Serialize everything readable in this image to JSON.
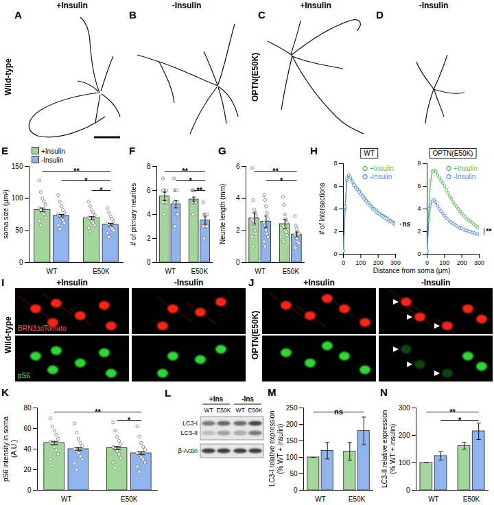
{
  "tracings": [
    {
      "genotype": "Wild-type",
      "panels": [
        {
          "label": "A",
          "condition": "+Insulin"
        },
        {
          "label": "B",
          "condition": "-Insulin"
        }
      ]
    },
    {
      "genotype": "OPTN(E50K)",
      "panels": [
        {
          "label": "C",
          "condition": "+Insulin"
        },
        {
          "label": "D",
          "condition": "-Insulin"
        }
      ]
    }
  ],
  "micrographs": [
    {
      "label": "I",
      "genotype": "Wild-type",
      "conditions": [
        "+Insulin",
        "-Insulin"
      ],
      "channels": [
        "BRN3:tdTomato",
        "pS6"
      ]
    },
    {
      "label": "J",
      "genotype": "OPTN(E50K)",
      "conditions": [
        "+Insulin",
        "-Insulin"
      ]
    }
  ],
  "western_blot": {
    "label": "L",
    "conditions": [
      {
        "name": "+Ins",
        "lanes": [
          "WT",
          "E50K"
        ]
      },
      {
        "name": "-Ins",
        "lanes": [
          "WT",
          "E50K"
        ]
      }
    ],
    "bands": [
      "LC3-I",
      "LC3-II",
      "β-Actin"
    ]
  },
  "chart_data": [
    {
      "panel": "E",
      "type": "bar",
      "ylabel": "soma size (μm²)",
      "categories": [
        "WT",
        "E50K"
      ],
      "series": [
        {
          "name": "+Insulin",
          "color": "#a3d69b",
          "values": [
            82,
            69
          ],
          "errors": [
            3,
            2.5
          ],
          "points": [
            [
              128,
              110,
              100,
              95,
              90,
              85,
              82,
              78,
              75,
              70,
              65,
              58
            ],
            [
              95,
              88,
              82,
              78,
              74,
              70,
              68,
              65,
              62,
              58,
              54,
              48
            ]
          ]
        },
        {
          "name": "-Insulin",
          "color": "#8fb4ee",
          "values": [
            73,
            59
          ],
          "errors": [
            2,
            2
          ],
          "points": [
            [
              105,
              95,
              88,
              82,
              78,
              75,
              72,
              70,
              66,
              62,
              58,
              52
            ],
            [
              85,
              78,
              72,
              68,
              64,
              61,
              58,
              56,
              53,
              50,
              46,
              40
            ]
          ]
        }
      ],
      "ylim": [
        0,
        150
      ],
      "yticks": [
        0,
        50,
        100,
        150
      ],
      "legend": "top-left",
      "significance": [
        {
          "from": [
            "WT",
            "+Insulin"
          ],
          "to": [
            "E50K",
            "-Insulin"
          ],
          "label": "**"
        },
        {
          "from": [
            "WT",
            "-Insulin"
          ],
          "to": [
            "E50K",
            "-Insulin"
          ],
          "label": "*"
        },
        {
          "from": [
            "E50K",
            "+Insulin"
          ],
          "to": [
            "E50K",
            "-Insulin"
          ],
          "label": "*"
        }
      ]
    },
    {
      "panel": "F",
      "type": "bar",
      "ylabel": "# of primary neurites",
      "categories": [
        "WT",
        "E50K"
      ],
      "series": [
        {
          "name": "+Insulin",
          "color": "#a3d69b",
          "values": [
            5.5,
            5.25
          ],
          "errors": [
            0.35,
            0.2
          ],
          "points": [
            [
              7,
              6,
              6,
              6,
              6,
              6,
              5,
              5,
              5,
              5,
              5,
              4
            ],
            [
              6,
              6,
              6,
              6,
              5,
              5,
              5,
              5,
              5,
              5,
              5,
              4
            ]
          ]
        },
        {
          "name": "-Insulin",
          "color": "#8fb4ee",
          "values": [
            4.85,
            3.5
          ],
          "errors": [
            0.3,
            0.3
          ],
          "points": [
            [
              7,
              6,
              6,
              6,
              5,
              5,
              5,
              4,
              4,
              4,
              3,
              3
            ],
            [
              5,
              4,
              4,
              4,
              4,
              3,
              3,
              3,
              3,
              3,
              3,
              2
            ]
          ]
        }
      ],
      "ylim": [
        0,
        8
      ],
      "yticks": [
        0,
        2,
        4,
        6,
        8
      ],
      "significance": [
        {
          "from": [
            "WT",
            "+Insulin"
          ],
          "to": [
            "E50K",
            "-Insulin"
          ],
          "label": "**"
        },
        {
          "from": [
            "WT",
            "-Insulin"
          ],
          "to": [
            "E50K",
            "-Insulin"
          ],
          "label": "*"
        },
        {
          "from": [
            "E50K",
            "+Insulin"
          ],
          "to": [
            "E50K",
            "-Insulin"
          ],
          "label": "**"
        }
      ]
    },
    {
      "panel": "G",
      "type": "bar",
      "ylabel": "Neurite length (mm)",
      "categories": [
        "WT",
        "E50K"
      ],
      "series": [
        {
          "name": "+Insulin",
          "color": "#a3d69b",
          "values": [
            2.75,
            2.4
          ],
          "errors": [
            0.35,
            0.3
          ],
          "points": [
            [
              5.9,
              3.9,
              3.3,
              3.1,
              2.9,
              2.7,
              2.6,
              2.4,
              2.0,
              1.8,
              1.6,
              1.0
            ],
            [
              4.1,
              3.6,
              3.0,
              2.7,
              2.5,
              2.3,
              2.2,
              2.0,
              1.9,
              1.7,
              1.4,
              1.3
            ]
          ]
        },
        {
          "name": "-Insulin",
          "color": "#8fb4ee",
          "values": [
            2.55,
            1.75
          ],
          "errors": [
            0.35,
            0.15
          ],
          "points": [
            [
              4.2,
              3.9,
              3.5,
              3.1,
              2.7,
              2.5,
              2.3,
              2.0,
              1.8,
              1.6,
              1.3,
              1.0
            ],
            [
              2.9,
              2.3,
              2.1,
              1.9,
              1.8,
              1.7,
              1.6,
              1.5,
              1.3,
              1.2,
              1.0,
              0.9
            ]
          ]
        }
      ],
      "ylim": [
        0,
        6
      ],
      "yticks": [
        0,
        2,
        4,
        6
      ],
      "significance": [
        {
          "from": [
            "WT",
            "+Insulin"
          ],
          "to": [
            "E50K",
            "-Insulin"
          ],
          "label": "**"
        },
        {
          "from": [
            "WT",
            "-Insulin"
          ],
          "to": [
            "E50K",
            "-Insulin"
          ],
          "label": "*"
        }
      ]
    },
    {
      "panel": "H",
      "type": "line",
      "marker": "circle",
      "legend": "top-right",
      "xlabel": "Distance from soma (μm)",
      "ylabel": "# of intersections",
      "xlim": [
        0,
        300
      ],
      "xticks": [
        0,
        100,
        200,
        300
      ],
      "ylim": [
        0,
        8
      ],
      "yticks": [
        0,
        2,
        4,
        6,
        8
      ],
      "x": [
        0,
        10,
        20,
        30,
        40,
        50,
        60,
        70,
        80,
        90,
        100,
        110,
        120,
        130,
        140,
        150,
        160,
        170,
        180,
        190,
        200,
        210,
        220,
        230,
        240,
        250,
        260,
        270,
        280,
        290,
        300
      ],
      "subplots": [
        {
          "title": "WT",
          "annotation": "ns",
          "series": [
            {
              "name": "+Insulin",
              "color": "#5fb85a",
              "values": [
                0.3,
                4,
                6.5,
                7,
                6.8,
                6.5,
                6.2,
                6,
                5.8,
                5.6,
                5.4,
                5.2,
                5,
                4.8,
                4.6,
                4.4,
                4.3,
                4.1,
                4,
                3.9,
                3.7,
                3.6,
                3.5,
                3.4,
                3.3,
                3.2,
                3.1,
                3,
                2.9,
                2.8,
                2.7
              ]
            },
            {
              "name": "-Insulin",
              "color": "#5b8fe0",
              "values": [
                0.3,
                4.2,
                6.7,
                7,
                6.8,
                6.4,
                6.1,
                5.9,
                5.7,
                5.5,
                5.3,
                5.1,
                4.9,
                4.7,
                4.5,
                4.3,
                4.2,
                4,
                3.9,
                3.7,
                3.6,
                3.5,
                3.4,
                3.3,
                3.2,
                3.1,
                3,
                2.9,
                2.8,
                2.7,
                2.6
              ]
            }
          ]
        },
        {
          "title": "OPTN(E50K)",
          "annotation": "**",
          "series": [
            {
              "name": "+Insulin",
              "color": "#5fb85a",
              "values": [
                0.3,
                4,
                6.5,
                7.3,
                7.4,
                7.3,
                7,
                6.8,
                6.5,
                6.3,
                6,
                5.7,
                5.4,
                5.1,
                4.9,
                4.6,
                4.4,
                4.2,
                4,
                3.8,
                3.6,
                3.4,
                3.3,
                3.1,
                3,
                2.9,
                2.8,
                2.6,
                2.5,
                2.4,
                2.3
              ]
            },
            {
              "name": "-Insulin",
              "color": "#5b8fe0",
              "values": [
                0.3,
                3,
                4.3,
                4.7,
                4.8,
                4.6,
                4.3,
                4,
                3.8,
                3.6,
                3.4,
                3.2,
                3.1,
                2.9,
                2.8,
                2.7,
                2.6,
                2.5,
                2.4,
                2.3,
                2.3,
                2.2,
                2.1,
                2.1,
                2,
                2,
                1.9,
                1.9,
                1.8,
                1.8,
                1.7
              ]
            }
          ]
        }
      ]
    },
    {
      "panel": "K",
      "type": "bar",
      "ylabel": "pS6 intensity in soma (A.U.)",
      "categories": [
        "WT",
        "E50K"
      ],
      "series": [
        {
          "name": "+Insulin",
          "color": "#a3d69b",
          "values": [
            46,
            41
          ],
          "errors": [
            1.5,
            1.5
          ],
          "points": [
            [
              70,
              62,
              58,
              54,
              50,
              47,
              45,
              42,
              39,
              35,
              30,
              24
            ],
            [
              66,
              58,
              52,
              48,
              45,
              42,
              40,
              38,
              35,
              31,
              27,
              22
            ]
          ]
        },
        {
          "name": "-Insulin",
          "color": "#8fb4ee",
          "values": [
            40,
            36
          ],
          "errors": [
            1.5,
            1.5
          ],
          "points": [
            [
              65,
              56,
              50,
              46,
              43,
              40,
              38,
              36,
              33,
              30,
              26,
              20
            ],
            [
              62,
              52,
              46,
              42,
              39,
              36,
              34,
              32,
              30,
              27,
              23,
              18
            ]
          ]
        }
      ],
      "ylim": [
        0,
        80
      ],
      "yticks": [
        0,
        20,
        40,
        60,
        80
      ],
      "significance": [
        {
          "from": [
            "WT",
            "+Insulin"
          ],
          "to": [
            "E50K",
            "-Insulin"
          ],
          "label": "**"
        },
        {
          "from": [
            "E50K",
            "+Insulin"
          ],
          "to": [
            "E50K",
            "-Insulin"
          ],
          "label": "*"
        }
      ]
    },
    {
      "panel": "M",
      "type": "bar",
      "ylabel": "LC3-I relative expression (% WT + insulin)",
      "categories": [
        "WT",
        "E50K"
      ],
      "series": [
        {
          "name": "+Insulin",
          "color": "#a3d69b",
          "values": [
            100,
            118
          ],
          "errors": [
            0,
            27
          ]
        },
        {
          "name": "-Insulin",
          "color": "#8fb4ee",
          "values": [
            120,
            180
          ],
          "errors": [
            25,
            42
          ]
        }
      ],
      "ylim": [
        0,
        250
      ],
      "yticks": [
        0,
        50,
        100,
        150,
        200,
        250
      ],
      "significance": [
        {
          "from": [
            "WT",
            "+Insulin"
          ],
          "to": [
            "E50K",
            "-Insulin"
          ],
          "label": "ns"
        }
      ]
    },
    {
      "panel": "N",
      "type": "bar",
      "ylabel": "LC3-II relative expression (% WT + insulin)",
      "categories": [
        "WT",
        "E50K"
      ],
      "series": [
        {
          "name": "+Insulin",
          "color": "#a3d69b",
          "values": [
            100,
            162
          ],
          "errors": [
            0,
            12
          ]
        },
        {
          "name": "-Insulin",
          "color": "#8fb4ee",
          "values": [
            125,
            215
          ],
          "errors": [
            15,
            30
          ]
        }
      ],
      "ylim": [
        0,
        300
      ],
      "yticks": [
        0,
        100,
        200,
        300
      ],
      "significance": [
        {
          "from": [
            "WT",
            "+Insulin"
          ],
          "to": [
            "E50K",
            "-Insulin"
          ],
          "label": "**"
        },
        {
          "from": [
            "WT",
            "-Insulin"
          ],
          "to": [
            "E50K",
            "-Insulin"
          ],
          "label": "*"
        }
      ]
    }
  ]
}
